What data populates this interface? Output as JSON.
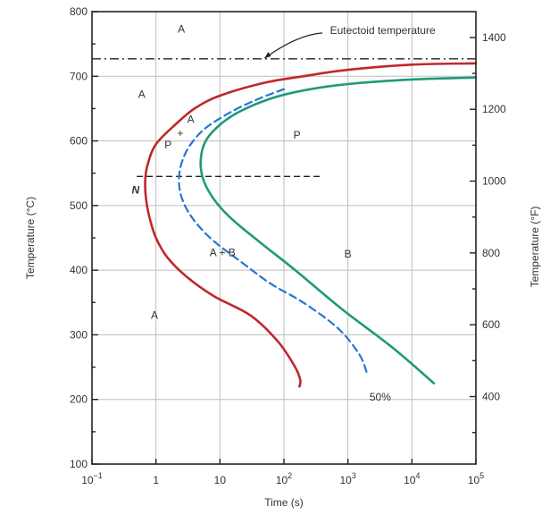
{
  "chart_data": {
    "type": "line",
    "xlabel": "Time (s)",
    "ylabel": "Temperature (°C)",
    "ylabel_right": "Temperature (°F)",
    "x_scale": "log",
    "xlim": [
      0.1,
      100000
    ],
    "ylim": [
      100,
      800
    ],
    "ylim_right": [
      212,
      1472
    ],
    "x_ticks": [
      {
        "value": 0.1,
        "base": "10",
        "exp": "−1",
        "label": ""
      },
      {
        "value": 1,
        "base": "",
        "exp": "",
        "label": "1"
      },
      {
        "value": 10,
        "base": "",
        "exp": "",
        "label": "10"
      },
      {
        "value": 100,
        "base": "10",
        "exp": "2",
        "label": ""
      },
      {
        "value": 1000,
        "base": "10",
        "exp": "3",
        "label": ""
      },
      {
        "value": 10000,
        "base": "10",
        "exp": "4",
        "label": ""
      },
      {
        "value": 100000,
        "base": "10",
        "exp": "5",
        "label": ""
      }
    ],
    "y_ticks": [
      {
        "value": 100,
        "label": "100"
      },
      {
        "value": 200,
        "label": "200"
      },
      {
        "value": 300,
        "label": "300"
      },
      {
        "value": 400,
        "label": "400"
      },
      {
        "value": 500,
        "label": "500"
      },
      {
        "value": 600,
        "label": "600"
      },
      {
        "value": 700,
        "label": "700"
      },
      {
        "value": 800,
        "label": "800"
      }
    ],
    "y_minor_ticks": [
      150,
      250,
      350,
      450,
      550,
      650,
      750
    ],
    "y_right_ticks": [
      {
        "value": 400,
        "label": "400"
      },
      {
        "value": 600,
        "label": "600"
      },
      {
        "value": 800,
        "label": "800"
      },
      {
        "value": 1000,
        "label": "1000"
      },
      {
        "value": 1200,
        "label": "1200"
      },
      {
        "value": 1400,
        "label": "1400"
      }
    ],
    "y_right_minor_ticks": [
      300,
      500,
      700,
      900,
      1100,
      1300
    ],
    "grid": true,
    "series": [
      {
        "color": "#c0272d",
        "dash": "solid",
        "x": [
          100000,
          10000,
          1000,
          200,
          50,
          10,
          4,
          2,
          1,
          0.75,
          0.68,
          0.7,
          0.8,
          1.0,
          1.5,
          3,
          8,
          30,
          80,
          150,
          180,
          175
        ],
        "y": [
          720,
          718,
          710,
          700,
          690,
          670,
          650,
          625,
          595,
          565,
          540,
          510,
          480,
          450,
          420,
          390,
          360,
          330,
          290,
          250,
          230,
          220
        ]
      },
      {
        "color": "#2277d4",
        "dash": "dashed",
        "x": [
          100,
          40,
          15,
          6,
          3.5,
          2.6,
          2.3,
          2.4,
          3,
          4.5,
          8,
          20,
          60,
          200,
          700,
          1500,
          2000
        ],
        "y": [
          680,
          665,
          645,
          620,
          595,
          570,
          545,
          520,
          495,
          470,
          445,
          415,
          380,
          350,
          310,
          270,
          240
        ]
      },
      {
        "color": "#1f9a77",
        "dash": "solid",
        "x": [
          100000,
          10000,
          1000,
          200,
          60,
          20,
          10,
          6,
          5,
          5.5,
          8,
          15,
          40,
          150,
          800,
          5000,
          22000
        ],
        "y": [
          698,
          695,
          688,
          678,
          665,
          645,
          625,
          600,
          570,
          540,
          510,
          480,
          445,
          400,
          340,
          280,
          225
        ]
      }
    ],
    "reference_lines": [
      {
        "style": "dash-dot",
        "y": 727,
        "x_from": 0.1,
        "x_to": 100000
      },
      {
        "style": "dashed",
        "y": 545,
        "x_from": 0.5,
        "x_to": 400
      }
    ],
    "annotations": [
      {
        "text": "A",
        "x": 2.5,
        "y": 773
      },
      {
        "text": "A",
        "x": 0.6,
        "y": 672
      },
      {
        "text": "A",
        "x": 3.5,
        "y": 633
      },
      {
        "text": "+",
        "x": 2.4,
        "y": 612
      },
      {
        "text": "P",
        "x": 1.55,
        "y": 594
      },
      {
        "text": "P",
        "x": 160,
        "y": 609
      },
      {
        "text": "N",
        "x": 0.48,
        "y": 524
      },
      {
        "text": "A + B",
        "x": 11,
        "y": 427
      },
      {
        "text": "B",
        "x": 1000,
        "y": 425
      },
      {
        "text": "A",
        "x": 0.95,
        "y": 330
      },
      {
        "text": "50%",
        "x": 3200,
        "y": 204
      }
    ],
    "eutectoid": {
      "text": "Eutectoid temperature",
      "x": 3500,
      "y": 771,
      "arrow_from_x": 400,
      "arrow_from_y": 767,
      "arrow_to_x": 50,
      "arrow_to_y": 728
    }
  }
}
